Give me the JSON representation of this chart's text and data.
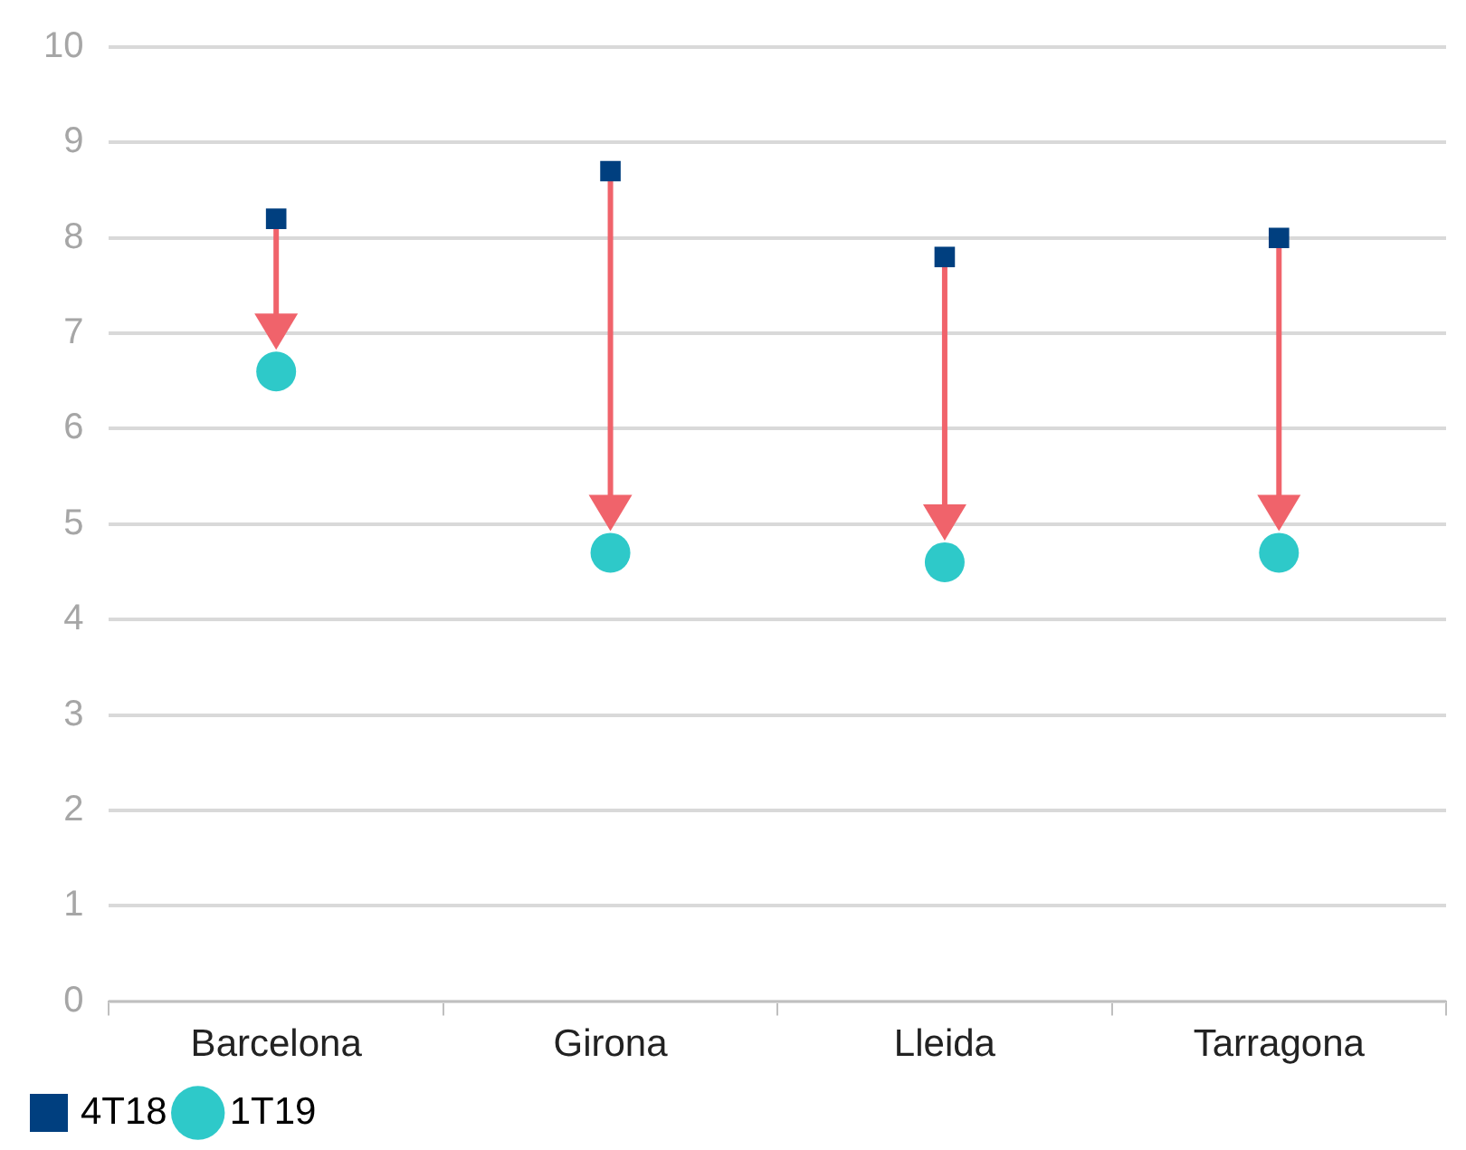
{
  "chart_data": {
    "type": "scatter",
    "categories": [
      "Barcelona",
      "Girona",
      "Lleida",
      "Tarragona"
    ],
    "series": [
      {
        "name": "4T18",
        "color": "#003f7f",
        "marker": "square",
        "values": [
          8.2,
          8.7,
          7.8,
          8.0
        ]
      },
      {
        "name": "1T19",
        "color": "#2ec9c9",
        "marker": "circle",
        "values": [
          6.6,
          4.7,
          4.6,
          4.7
        ]
      }
    ],
    "ylim": [
      0,
      10
    ],
    "yticks": [
      0,
      1,
      2,
      3,
      4,
      5,
      6,
      7,
      8,
      9,
      10
    ],
    "grid": "y",
    "legend": "bottom left"
  }
}
